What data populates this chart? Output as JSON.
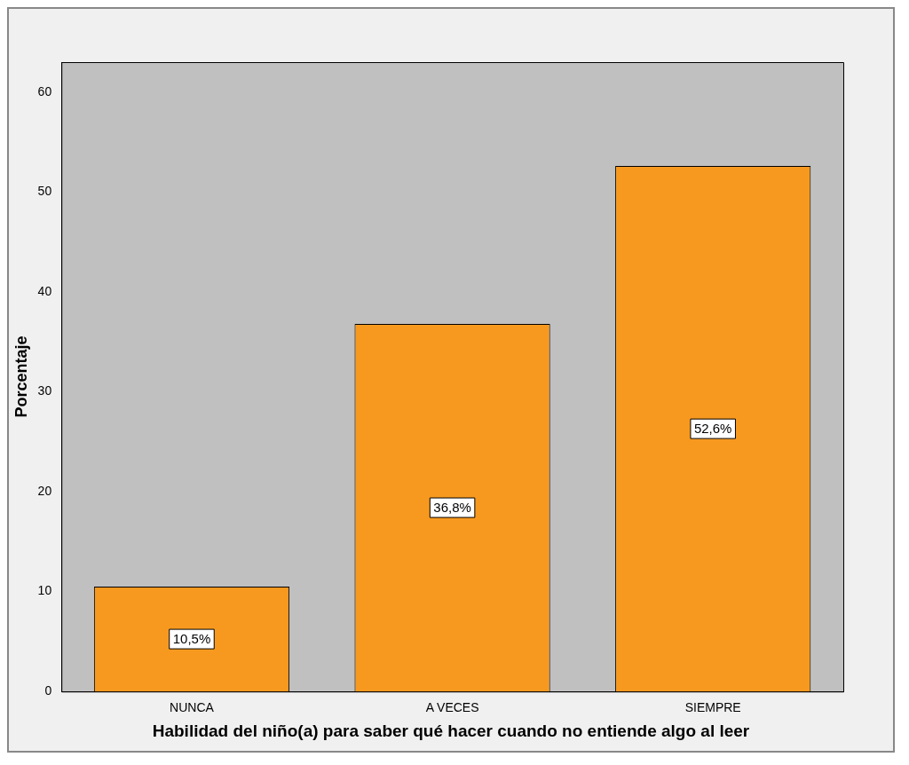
{
  "chart_data": {
    "type": "bar",
    "categories": [
      "NUNCA",
      "A VECES",
      "SIEMPRE"
    ],
    "values": [
      10.5,
      36.8,
      52.6
    ],
    "color": "#f7991f",
    "value_labels": [
      "10,5%",
      "36,8%",
      "52,6%"
    ],
    "xlabel": "Habilidad del niño(a) para saber qué hacer cuando no entiende algo al leer",
    "ylabel": "Porcentaje",
    "ylim": [
      0,
      63
    ],
    "yticks": [
      0,
      10,
      20,
      30,
      40,
      50,
      60
    ],
    "grid": false,
    "legend": false
  }
}
